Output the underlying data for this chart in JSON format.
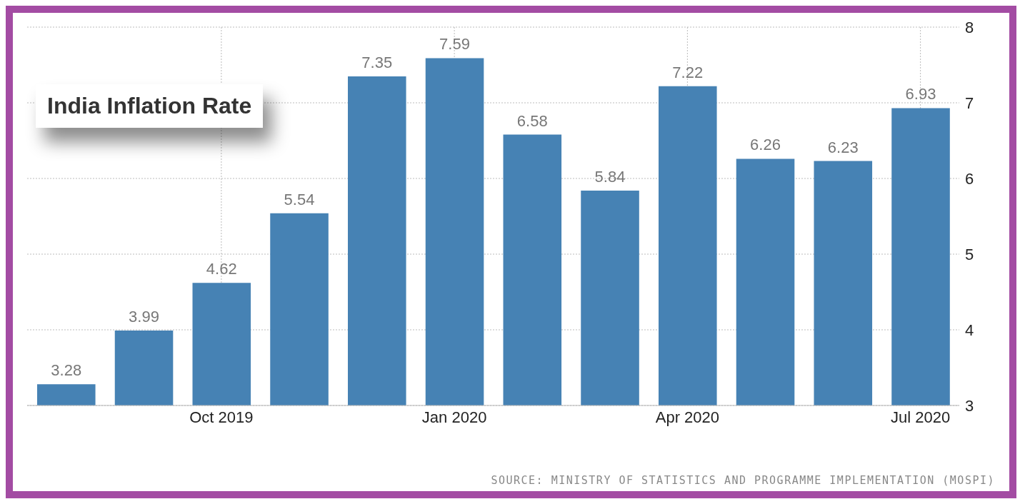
{
  "chart_data": {
    "type": "bar",
    "title": "India Inflation Rate",
    "categories": [
      null,
      null,
      "Oct 2019",
      null,
      null,
      "Jan 2020",
      null,
      null,
      "Apr 2020",
      null,
      null,
      "Jul 2020"
    ],
    "values": [
      3.28,
      3.99,
      4.62,
      5.54,
      7.35,
      7.59,
      6.58,
      5.84,
      7.22,
      6.26,
      6.23,
      6.93
    ],
    "color": "#4682b4",
    "ylim": [
      3,
      8
    ],
    "yticks": [
      3,
      4,
      5,
      6,
      7,
      8
    ],
    "grid": true,
    "data_labels": true,
    "legend": false,
    "annotations": [
      "SOURCE: MINISTRY OF STATISTICS AND PROGRAMME IMPLEMENTATION (MOSPI)"
    ]
  }
}
